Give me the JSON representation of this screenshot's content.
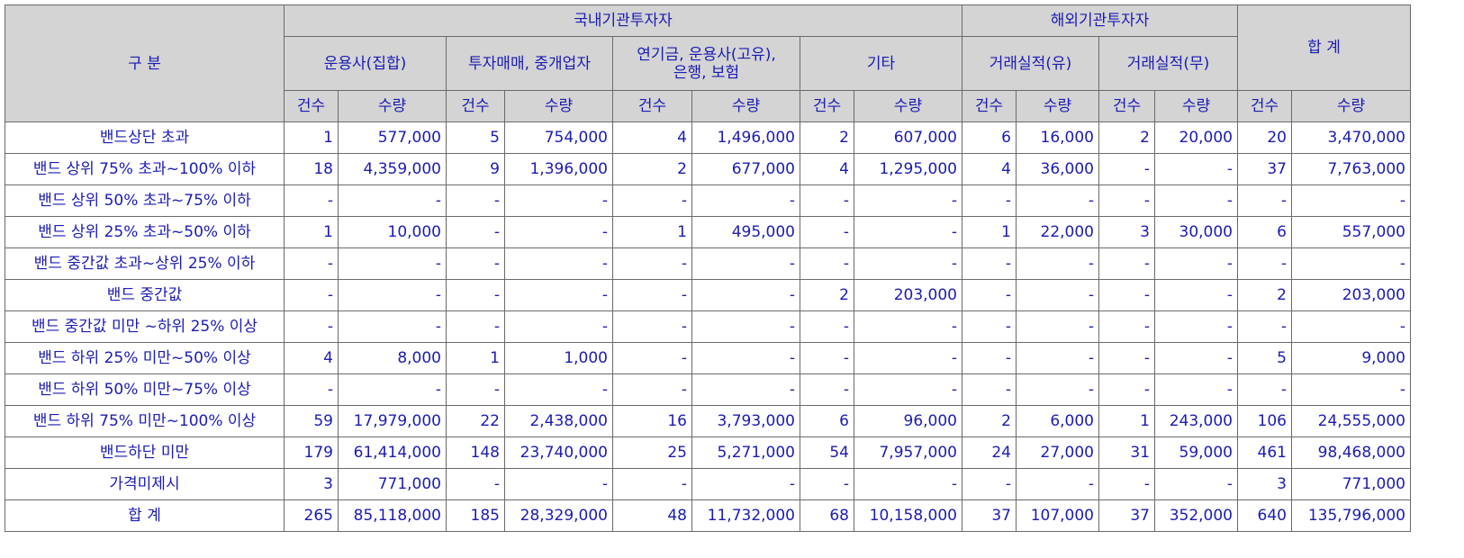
{
  "header": {
    "category": "구 분",
    "domestic": "국내기관투자자",
    "foreign": "해외기관투자자",
    "total": "합 계",
    "groups": [
      "운용사(집합)",
      "투자매매, 중개업자",
      "연기금, 운용사(고유),\n은행, 보험",
      "기타",
      "거래실적(유)",
      "거래실적(무)"
    ],
    "count_label": "건수",
    "qty_label": "수량"
  },
  "rows": [
    {
      "label": "밴드상단 초과",
      "cells": [
        "1",
        "577,000",
        "5",
        "754,000",
        "4",
        "1,496,000",
        "2",
        "607,000",
        "6",
        "16,000",
        "2",
        "20,000",
        "20",
        "3,470,000"
      ]
    },
    {
      "label": "밴드 상위 75% 초과~100% 이하",
      "cells": [
        "18",
        "4,359,000",
        "9",
        "1,396,000",
        "2",
        "677,000",
        "4",
        "1,295,000",
        "4",
        "36,000",
        "-",
        "-",
        "37",
        "7,763,000"
      ]
    },
    {
      "label": "밴드 상위 50% 초과~75% 이하",
      "cells": [
        "-",
        "-",
        "-",
        "-",
        "-",
        "-",
        "-",
        "-",
        "-",
        "-",
        "-",
        "-",
        "-",
        "-"
      ]
    },
    {
      "label": "밴드 상위 25% 초과~50% 이하",
      "cells": [
        "1",
        "10,000",
        "-",
        "-",
        "1",
        "495,000",
        "-",
        "-",
        "1",
        "22,000",
        "3",
        "30,000",
        "6",
        "557,000"
      ]
    },
    {
      "label": "밴드 중간값 초과~상위 25% 이하",
      "cells": [
        "-",
        "-",
        "-",
        "-",
        "-",
        "-",
        "-",
        "-",
        "-",
        "-",
        "-",
        "-",
        "-",
        "-"
      ]
    },
    {
      "label": "밴드 중간값",
      "cells": [
        "-",
        "-",
        "-",
        "-",
        "-",
        "-",
        "2",
        "203,000",
        "-",
        "-",
        "-",
        "-",
        "2",
        "203,000"
      ]
    },
    {
      "label": "밴드 중간값 미만 ~하위 25% 이상",
      "cells": [
        "-",
        "-",
        "-",
        "-",
        "-",
        "-",
        "-",
        "-",
        "-",
        "-",
        "-",
        "-",
        "-",
        "-"
      ]
    },
    {
      "label": "밴드 하위 25% 미만~50% 이상",
      "cells": [
        "4",
        "8,000",
        "1",
        "1,000",
        "-",
        "-",
        "-",
        "-",
        "-",
        "-",
        "-",
        "-",
        "5",
        "9,000"
      ]
    },
    {
      "label": "밴드 하위 50% 미만~75% 이상",
      "cells": [
        "-",
        "-",
        "-",
        "-",
        "-",
        "-",
        "-",
        "-",
        "-",
        "-",
        "-",
        "-",
        "-",
        "-"
      ]
    },
    {
      "label": "밴드 하위 75% 미만~100% 이상",
      "cells": [
        "59",
        "17,979,000",
        "22",
        "2,438,000",
        "16",
        "3,793,000",
        "6",
        "96,000",
        "2",
        "6,000",
        "1",
        "243,000",
        "106",
        "24,555,000"
      ]
    },
    {
      "label": "밴드하단 미만",
      "cells": [
        "179",
        "61,414,000",
        "148",
        "23,740,000",
        "25",
        "5,271,000",
        "54",
        "7,957,000",
        "24",
        "27,000",
        "31",
        "59,000",
        "461",
        "98,468,000"
      ]
    },
    {
      "label": "가격미제시",
      "cells": [
        "3",
        "771,000",
        "-",
        "-",
        "-",
        "-",
        "-",
        "-",
        "-",
        "-",
        "-",
        "-",
        "3",
        "771,000"
      ]
    },
    {
      "label": "합 계",
      "cells": [
        "265",
        "85,118,000",
        "185",
        "28,329,000",
        "48",
        "11,732,000",
        "68",
        "10,158,000",
        "37",
        "107,000",
        "37",
        "352,000",
        "640",
        "135,796,000"
      ]
    }
  ]
}
